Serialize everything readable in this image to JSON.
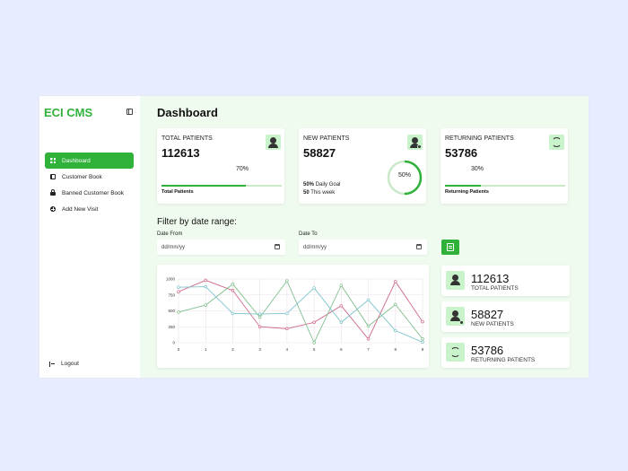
{
  "app": {
    "brand": "ECI CMS"
  },
  "sidebar": {
    "items": [
      {
        "label": "Dashboard",
        "active": true,
        "icon": "grid-icon"
      },
      {
        "label": "Customer Book",
        "icon": "book-icon"
      },
      {
        "label": "Banned Customer Book",
        "icon": "lock-icon"
      },
      {
        "label": "Add New Visit",
        "icon": "plus-circle-icon"
      }
    ],
    "logout": "Logout"
  },
  "header": {
    "title": "Dashboard"
  },
  "stats": {
    "total": {
      "label": "TOTAL PATIENTS",
      "value": "112613",
      "percent_text": "70%",
      "percent": 0.7,
      "bar_label": "Total Patients"
    },
    "new": {
      "label": "NEW PATIENTS",
      "value": "58827",
      "donut_text": "50%",
      "percent": 0.5,
      "goal_value": "50%",
      "goal_text": "Daily Goal",
      "week_value": "50",
      "week_text": "This week"
    },
    "returning": {
      "label": "RETURNING PATIENTS",
      "value": "53786",
      "percent_text": "30%",
      "percent": 0.3,
      "bar_label": "Returning Patients"
    }
  },
  "filter": {
    "title": "Filter by date range:",
    "from_label": "Date From",
    "from_placeholder": "dd/mm/yy",
    "to_label": "Date To",
    "to_placeholder": "dd/mm/yy"
  },
  "summary": [
    {
      "value": "112613",
      "label": "TOTAL PATIENTS"
    },
    {
      "value": "58827",
      "label": "NEW PATIENTS"
    },
    {
      "value": "53786",
      "label": "RETURNING PATIENTS"
    }
  ],
  "colors": {
    "accent": "#2fb13a",
    "series1": "#d06a8a",
    "series2": "#7fbf8c",
    "series3": "#7dc4cc"
  },
  "chart_data": {
    "type": "line",
    "x": [
      0,
      1,
      2,
      3,
      4,
      5,
      6,
      7,
      8,
      9
    ],
    "ylim": [
      0,
      1000
    ],
    "yticks": [
      0,
      250,
      500,
      750,
      1000
    ],
    "grid": true,
    "series": [
      {
        "values": [
          800,
          980,
          820,
          250,
          220,
          320,
          580,
          60,
          960,
          330
        ],
        "color": "#d06a8a"
      },
      {
        "values": [
          480,
          590,
          920,
          400,
          970,
          0,
          900,
          260,
          600,
          60
        ],
        "color": "#7fbf8c"
      },
      {
        "values": [
          870,
          880,
          460,
          450,
          460,
          860,
          320,
          670,
          190,
          10
        ],
        "color": "#7dc4cc"
      }
    ]
  }
}
